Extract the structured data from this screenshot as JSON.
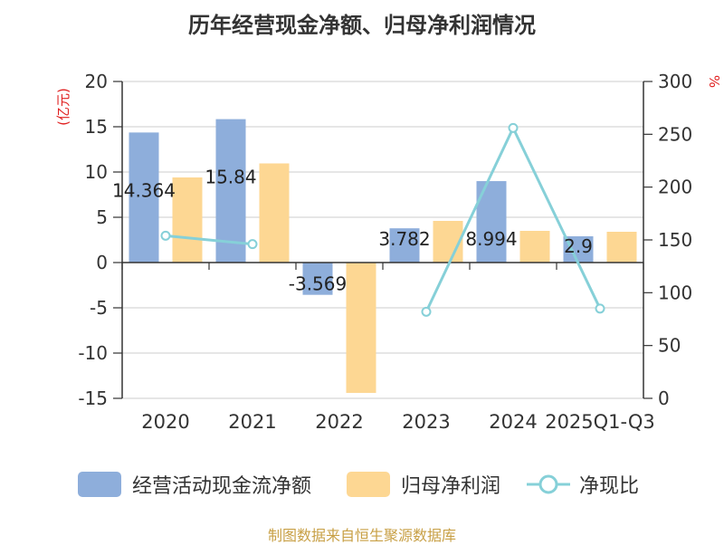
{
  "title": "历年经营现金净额、归母净利润情况",
  "source": "制图数据来自恒生聚源数据库",
  "chart_data": {
    "type": "bar",
    "title": "历年经营现金净额、归母净利润情况",
    "categories": [
      "2020",
      "2021",
      "2022",
      "2023",
      "2024",
      "2025Q1-Q3"
    ],
    "y_left": {
      "label": "(亿元)",
      "ylim": [
        -15,
        20
      ],
      "ticks": [
        20,
        15,
        10,
        5,
        0,
        -5,
        -10,
        -15
      ]
    },
    "y_right": {
      "label": "%",
      "ylim": [
        0,
        300
      ],
      "ticks": [
        300,
        250,
        200,
        150,
        100,
        50,
        0
      ]
    },
    "series": [
      {
        "name": "经营活动现金流净额",
        "type": "bar",
        "axis": "left",
        "color": "#8eaedb",
        "values": [
          14.364,
          15.84,
          -3.569,
          3.782,
          8.994,
          2.9
        ],
        "labels": [
          "14.364",
          "15.84",
          "-3.569",
          "3.782",
          "8.994",
          "2.9"
        ]
      },
      {
        "name": "归母净利润",
        "type": "bar",
        "axis": "left",
        "color": "#fdd793",
        "values": [
          9.4,
          10.95,
          -14.4,
          4.6,
          3.5,
          3.4
        ]
      },
      {
        "name": "净现比",
        "type": "line",
        "axis": "right",
        "color": "#86d0d8",
        "values": [
          154,
          146,
          null,
          82,
          256,
          85
        ]
      }
    ],
    "legend": [
      "经营活动现金流净额",
      "归母净利润",
      "净现比"
    ],
    "legend_position": "bottom",
    "grid": true
  }
}
